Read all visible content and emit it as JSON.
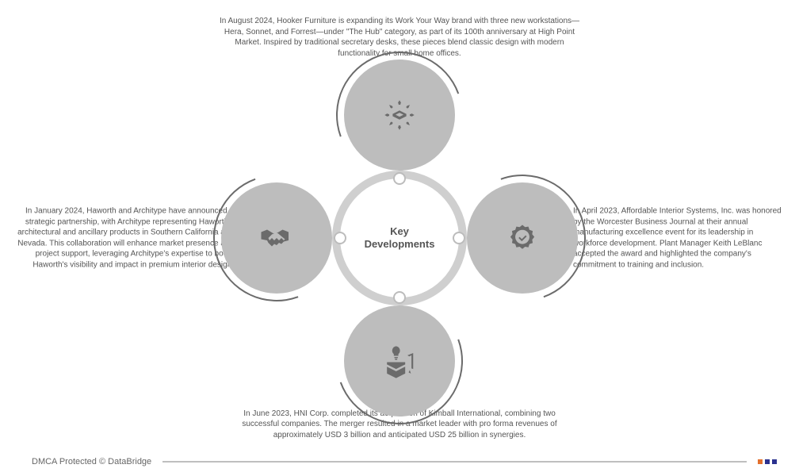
{
  "center_label": "Key\nDevelopments",
  "colors": {
    "bubble": "#bdbdbd",
    "icon": "#6b6b6b",
    "ring": "#cfcfcf",
    "text": "#555555",
    "footer_line": "#bfbfbf",
    "dots": [
      "#e3702d",
      "#2b328f",
      "#2b328f"
    ]
  },
  "nodes": {
    "top": {
      "icon": "network",
      "text": "In August 2024, Hooker Furniture is expanding its Work Your Way brand with three new workstations—Hera, Sonnet, and Forrest—under \"The Hub\" category, as part of its 100th anniversary at High Point Market. Inspired by traditional secretary desks, these pieces blend classic design with modern functionality for small home offices."
    },
    "right": {
      "icon": "award",
      "text": "In April 2023, Affordable Interior Systems, Inc. was honored by the Worcester Business Journal at their annual manufacturing excellence event for its leadership in workforce development. Plant Manager Keith LeBlanc accepted the award and highlighted the company's commitment to training and inclusion."
    },
    "bottom": {
      "icon": "idea-box",
      "text": "In June 2023, HNI Corp. completed its acquisition of Kimball International, combining two successful companies. The merger resulted in a market leader with pro forma revenues of approximately USD 3 billion and anticipated USD 25 billion in synergies."
    },
    "left": {
      "icon": "handshake",
      "text": "In January 2024, Haworth and Architype have announced a strategic partnership, with Architype representing Haworth's architectural and ancillary products in Southern California and Nevada. This collaboration will enhance market presence and project support, leveraging Architype's expertise to boost Haworth's visibility and impact in premium interior design."
    }
  },
  "footer": "DMCA Protected © DataBridge"
}
